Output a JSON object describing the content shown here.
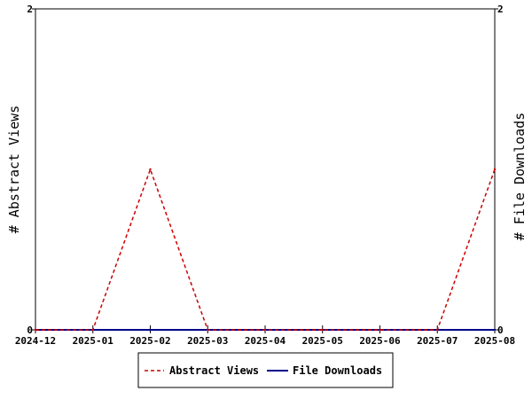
{
  "chart_data": {
    "type": "line",
    "x": [
      "2024-12",
      "2025-01",
      "2025-02",
      "2025-03",
      "2025-04",
      "2025-05",
      "2025-06",
      "2025-07",
      "2025-08"
    ],
    "series": [
      {
        "name": "Abstract Views",
        "axis": "left",
        "color": "#cc0000",
        "style": "dashed",
        "values": [
          0,
          0,
          1,
          0,
          0,
          0,
          0,
          0,
          1
        ]
      },
      {
        "name": "File Downloads",
        "axis": "right",
        "color": "#00008b",
        "style": "solid",
        "values": [
          0,
          0,
          0,
          0,
          0,
          0,
          0,
          0,
          0
        ]
      }
    ],
    "ylabel": "# Abstract Views",
    "y2label": "# File Downloads",
    "ylim": [
      0,
      2
    ],
    "y2lim": [
      0,
      2
    ],
    "yticks": [
      "0",
      "2"
    ],
    "y2ticks": [
      "0",
      "2"
    ],
    "grid": false,
    "legend": "bottom"
  }
}
